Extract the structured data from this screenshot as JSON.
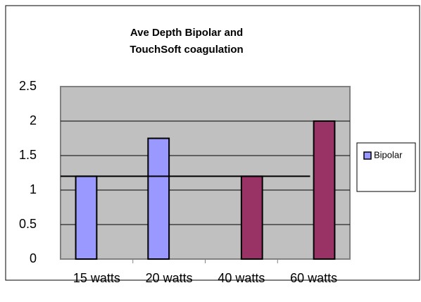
{
  "chart_data": {
    "type": "bar",
    "title": [
      "Ave Depth Bipolar and",
      "TouchSoft coagulation"
    ],
    "categories": [
      "15 watts",
      "20 watts",
      "40 watts",
      "60 watts"
    ],
    "series": [
      {
        "name": "Bipolar",
        "color": "#9999ff",
        "values": [
          1.2,
          1.75,
          null,
          null
        ]
      },
      {
        "color": "#993366",
        "values": [
          null,
          null,
          1.2,
          2
        ]
      }
    ],
    "line_value": 1.2,
    "ylim": [
      0,
      2.5
    ],
    "yticks": [
      0,
      0.5,
      1,
      1.5,
      2,
      2.5
    ],
    "grid": true,
    "legend": "right"
  }
}
